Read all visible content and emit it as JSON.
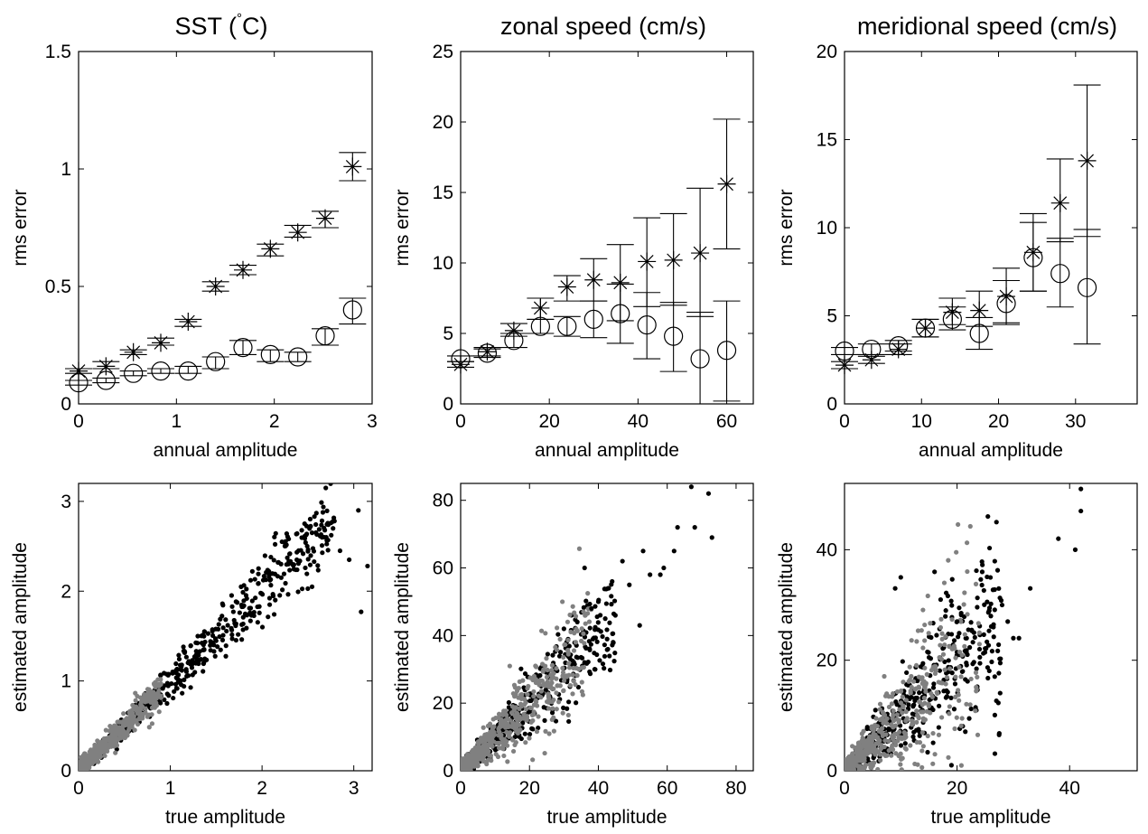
{
  "figure_colors": {
    "ink": "#000000",
    "gray": "#808080",
    "background": "#ffffff"
  },
  "chart_data": [
    {
      "id": "sst_rms",
      "type": "scatter",
      "title": "SST (°C)",
      "xlabel": "annual amplitude",
      "ylabel": "rms error",
      "xlim": [
        0,
        3
      ],
      "ylim": [
        0,
        1.5
      ],
      "xticks": [
        "0",
        "1",
        "2",
        "3"
      ],
      "yticks": [
        "0",
        "0.5",
        "1",
        "1.5"
      ],
      "xtick_values": [
        0,
        1,
        2,
        3
      ],
      "ytick_values": [
        0,
        0.5,
        1,
        1.5
      ],
      "series": [
        {
          "marker": "star",
          "points": [
            {
              "x": 0.0,
              "y": 0.14,
              "lo": 0.13,
              "hi": 0.15
            },
            {
              "x": 0.28,
              "y": 0.16,
              "lo": 0.15,
              "hi": 0.18
            },
            {
              "x": 0.56,
              "y": 0.22,
              "lo": 0.21,
              "hi": 0.23
            },
            {
              "x": 0.84,
              "y": 0.26,
              "lo": 0.25,
              "hi": 0.28
            },
            {
              "x": 1.12,
              "y": 0.35,
              "lo": 0.33,
              "hi": 0.36
            },
            {
              "x": 1.4,
              "y": 0.5,
              "lo": 0.48,
              "hi": 0.52
            },
            {
              "x": 1.68,
              "y": 0.57,
              "lo": 0.55,
              "hi": 0.59
            },
            {
              "x": 1.96,
              "y": 0.66,
              "lo": 0.63,
              "hi": 0.68
            },
            {
              "x": 2.24,
              "y": 0.73,
              "lo": 0.71,
              "hi": 0.76
            },
            {
              "x": 2.52,
              "y": 0.79,
              "lo": 0.75,
              "hi": 0.82
            },
            {
              "x": 2.8,
              "y": 1.01,
              "lo": 0.95,
              "hi": 1.07
            }
          ]
        },
        {
          "marker": "circle",
          "points": [
            {
              "x": 0.0,
              "y": 0.09,
              "lo": 0.08,
              "hi": 0.1
            },
            {
              "x": 0.28,
              "y": 0.1,
              "lo": 0.09,
              "hi": 0.11
            },
            {
              "x": 0.56,
              "y": 0.13,
              "lo": 0.12,
              "hi": 0.14
            },
            {
              "x": 0.84,
              "y": 0.14,
              "lo": 0.13,
              "hi": 0.15
            },
            {
              "x": 1.12,
              "y": 0.14,
              "lo": 0.13,
              "hi": 0.16
            },
            {
              "x": 1.4,
              "y": 0.18,
              "lo": 0.15,
              "hi": 0.2
            },
            {
              "x": 1.68,
              "y": 0.24,
              "lo": 0.21,
              "hi": 0.27
            },
            {
              "x": 1.96,
              "y": 0.21,
              "lo": 0.18,
              "hi": 0.23
            },
            {
              "x": 2.24,
              "y": 0.2,
              "lo": 0.18,
              "hi": 0.22
            },
            {
              "x": 2.52,
              "y": 0.29,
              "lo": 0.25,
              "hi": 0.32
            },
            {
              "x": 2.8,
              "y": 0.4,
              "lo": 0.34,
              "hi": 0.45
            }
          ]
        }
      ]
    },
    {
      "id": "zonal_rms",
      "type": "scatter",
      "title": "zonal speed (cm/s)",
      "xlabel": "annual amplitude",
      "ylabel": "rms error",
      "xlim": [
        0,
        66
      ],
      "ylim": [
        0,
        25
      ],
      "xticks": [
        "0",
        "20",
        "40",
        "60"
      ],
      "yticks": [
        "0",
        "5",
        "10",
        "15",
        "20",
        "25"
      ],
      "xtick_values": [
        0,
        20,
        40,
        60
      ],
      "ytick_values": [
        0,
        5,
        10,
        15,
        20,
        25
      ],
      "series": [
        {
          "marker": "star",
          "points": [
            {
              "x": 0,
              "y": 2.8,
              "lo": 2.6,
              "hi": 3.0
            },
            {
              "x": 6,
              "y": 3.7,
              "lo": 3.4,
              "hi": 4.0
            },
            {
              "x": 12,
              "y": 5.2,
              "lo": 4.8,
              "hi": 5.7
            },
            {
              "x": 18,
              "y": 6.8,
              "lo": 6.0,
              "hi": 7.5
            },
            {
              "x": 24,
              "y": 8.3,
              "lo": 7.3,
              "hi": 9.1
            },
            {
              "x": 30,
              "y": 8.8,
              "lo": 7.3,
              "hi": 10.3
            },
            {
              "x": 36,
              "y": 8.6,
              "lo": 5.9,
              "hi": 11.3
            },
            {
              "x": 42,
              "y": 10.1,
              "lo": 6.9,
              "hi": 13.2
            },
            {
              "x": 48,
              "y": 10.2,
              "lo": 7.0,
              "hi": 13.5
            },
            {
              "x": 54,
              "y": 10.7,
              "lo": 6.2,
              "hi": 15.3
            },
            {
              "x": 60,
              "y": 15.6,
              "lo": 11.0,
              "hi": 20.2
            }
          ]
        },
        {
          "marker": "circle",
          "points": [
            {
              "x": 0,
              "y": 3.2,
              "lo": 3.0,
              "hi": 3.4
            },
            {
              "x": 6,
              "y": 3.6,
              "lo": 3.3,
              "hi": 3.9
            },
            {
              "x": 12,
              "y": 4.5,
              "lo": 4.0,
              "hi": 5.0
            },
            {
              "x": 18,
              "y": 5.5,
              "lo": 5.0,
              "hi": 6.0
            },
            {
              "x": 24,
              "y": 5.5,
              "lo": 4.8,
              "hi": 6.2
            },
            {
              "x": 30,
              "y": 6.0,
              "lo": 4.7,
              "hi": 7.3
            },
            {
              "x": 36,
              "y": 6.4,
              "lo": 4.3,
              "hi": 8.5
            },
            {
              "x": 42,
              "y": 5.6,
              "lo": 3.2,
              "hi": 7.9
            },
            {
              "x": 48,
              "y": 4.8,
              "lo": 2.3,
              "hi": 7.2
            },
            {
              "x": 54,
              "y": 3.2,
              "lo": 0.0,
              "hi": 6.5
            },
            {
              "x": 60,
              "y": 3.8,
              "lo": 0.2,
              "hi": 7.3
            }
          ]
        }
      ]
    },
    {
      "id": "meridional_rms",
      "type": "scatter",
      "title": "meridional speed (cm/s)",
      "xlabel": "annual amplitude",
      "ylabel": "rms error",
      "xlim": [
        0,
        38
      ],
      "ylim": [
        0,
        20
      ],
      "xticks": [
        "0",
        "10",
        "20",
        "30"
      ],
      "yticks": [
        "0",
        "5",
        "10",
        "15",
        "20"
      ],
      "xtick_values": [
        0,
        10,
        20,
        30
      ],
      "ytick_values": [
        0,
        5,
        10,
        15,
        20
      ],
      "series": [
        {
          "marker": "star",
          "points": [
            {
              "x": 0,
              "y": 2.2,
              "lo": 2.0,
              "hi": 2.4
            },
            {
              "x": 3.5,
              "y": 2.5,
              "lo": 2.3,
              "hi": 2.7
            },
            {
              "x": 7,
              "y": 3.1,
              "lo": 2.8,
              "hi": 3.4
            },
            {
              "x": 10.5,
              "y": 4.3,
              "lo": 3.8,
              "hi": 4.8
            },
            {
              "x": 14,
              "y": 5.2,
              "lo": 4.5,
              "hi": 6.0
            },
            {
              "x": 17.5,
              "y": 5.3,
              "lo": 4.4,
              "hi": 6.4
            },
            {
              "x": 21,
              "y": 6.1,
              "lo": 4.6,
              "hi": 7.7
            },
            {
              "x": 24.5,
              "y": 8.6,
              "lo": 6.4,
              "hi": 10.8
            },
            {
              "x": 28,
              "y": 11.4,
              "lo": 9.2,
              "hi": 13.9
            },
            {
              "x": 31.5,
              "y": 13.8,
              "lo": 9.5,
              "hi": 18.1
            }
          ]
        },
        {
          "marker": "circle",
          "points": [
            {
              "x": 0,
              "y": 3.0,
              "lo": 2.8,
              "hi": 3.2
            },
            {
              "x": 3.5,
              "y": 3.1,
              "lo": 2.8,
              "hi": 3.4
            },
            {
              "x": 7,
              "y": 3.3,
              "lo": 3.0,
              "hi": 3.6
            },
            {
              "x": 10.5,
              "y": 4.3,
              "lo": 3.8,
              "hi": 4.8
            },
            {
              "x": 14,
              "y": 4.8,
              "lo": 4.2,
              "hi": 5.5
            },
            {
              "x": 17.5,
              "y": 4.0,
              "lo": 3.1,
              "hi": 4.9
            },
            {
              "x": 21,
              "y": 5.7,
              "lo": 4.5,
              "hi": 7.0
            },
            {
              "x": 24.5,
              "y": 8.3,
              "lo": 6.4,
              "hi": 10.3
            },
            {
              "x": 28,
              "y": 7.4,
              "lo": 5.5,
              "hi": 9.4
            },
            {
              "x": 31.5,
              "y": 6.6,
              "lo": 3.4,
              "hi": 9.9
            }
          ]
        }
      ]
    },
    {
      "id": "sst_scatter",
      "type": "scatter",
      "title": "",
      "xlabel": "true amplitude",
      "ylabel": "estimated amplitude",
      "xlim": [
        0,
        3.2
      ],
      "ylim": [
        0,
        3.2
      ],
      "xticks": [
        "0",
        "1",
        "2",
        "3"
      ],
      "yticks": [
        "0",
        "1",
        "2",
        "3"
      ],
      "xtick_values": [
        0,
        1,
        2,
        3
      ],
      "ytick_values": [
        0,
        1,
        2,
        3
      ],
      "cloud": {
        "black_count": 650,
        "gray_count": 550,
        "max_black": 2.8,
        "max_gray": 0.9,
        "spread": 0.12
      },
      "outliers": [
        [
          3.05,
          2.9
        ],
        [
          3.15,
          2.28
        ],
        [
          3.08,
          1.77
        ],
        [
          2.95,
          2.35
        ],
        [
          2.7,
          2.6
        ],
        [
          2.85,
          2.45
        ]
      ]
    },
    {
      "id": "zonal_scatter",
      "type": "scatter",
      "title": "",
      "xlabel": "true amplitude",
      "ylabel": "estimated amplitude",
      "xlim": [
        0,
        85
      ],
      "ylim": [
        0,
        85
      ],
      "xticks": [
        "0",
        "20",
        "40",
        "60",
        "80"
      ],
      "yticks": [
        "0",
        "20",
        "40",
        "60",
        "80"
      ],
      "xtick_values": [
        0,
        20,
        40,
        60,
        80
      ],
      "ytick_values": [
        0,
        20,
        40,
        60,
        80
      ],
      "cloud": {
        "black_count": 550,
        "gray_count": 600,
        "max_black": 45,
        "max_gray": 38,
        "spread": 0.28
      },
      "outliers": [
        [
          67,
          84
        ],
        [
          72,
          82
        ],
        [
          73,
          69
        ],
        [
          68,
          72
        ],
        [
          63,
          72
        ],
        [
          62,
          65
        ],
        [
          59,
          60
        ],
        [
          58,
          58
        ],
        [
          53,
          65
        ],
        [
          49,
          55
        ],
        [
          47,
          62
        ],
        [
          44,
          56
        ],
        [
          43,
          54
        ],
        [
          40,
          50
        ],
        [
          38,
          48
        ],
        [
          42,
          45
        ],
        [
          36,
          60
        ],
        [
          30,
          42
        ],
        [
          52,
          43
        ],
        [
          55,
          58
        ]
      ]
    },
    {
      "id": "meridional_scatter",
      "type": "scatter",
      "title": "",
      "xlabel": "true amplitude",
      "ylabel": "estimated amplitude",
      "xlim": [
        0,
        52
      ],
      "ylim": [
        0,
        52
      ],
      "xticks": [
        "0",
        "20",
        "40"
      ],
      "yticks": [
        "0",
        "20",
        "40"
      ],
      "xtick_values": [
        0,
        20,
        40
      ],
      "ytick_values": [
        0,
        20,
        40
      ],
      "cloud": {
        "black_count": 550,
        "gray_count": 600,
        "max_black": 28,
        "max_gray": 24,
        "spread": 0.45
      },
      "outliers": [
        [
          42,
          51
        ],
        [
          42,
          47
        ],
        [
          38,
          42
        ],
        [
          41,
          40
        ],
        [
          27,
          45
        ],
        [
          33,
          33
        ],
        [
          30,
          24
        ],
        [
          28,
          30
        ],
        [
          26,
          28
        ],
        [
          23,
          25
        ],
        [
          20,
          27
        ],
        [
          18,
          29
        ],
        [
          10,
          35
        ],
        [
          16,
          36
        ],
        [
          9,
          33
        ],
        [
          21,
          18
        ],
        [
          24,
          22
        ],
        [
          29,
          27
        ],
        [
          31,
          24
        ],
        [
          19,
          1
        ]
      ]
    }
  ]
}
